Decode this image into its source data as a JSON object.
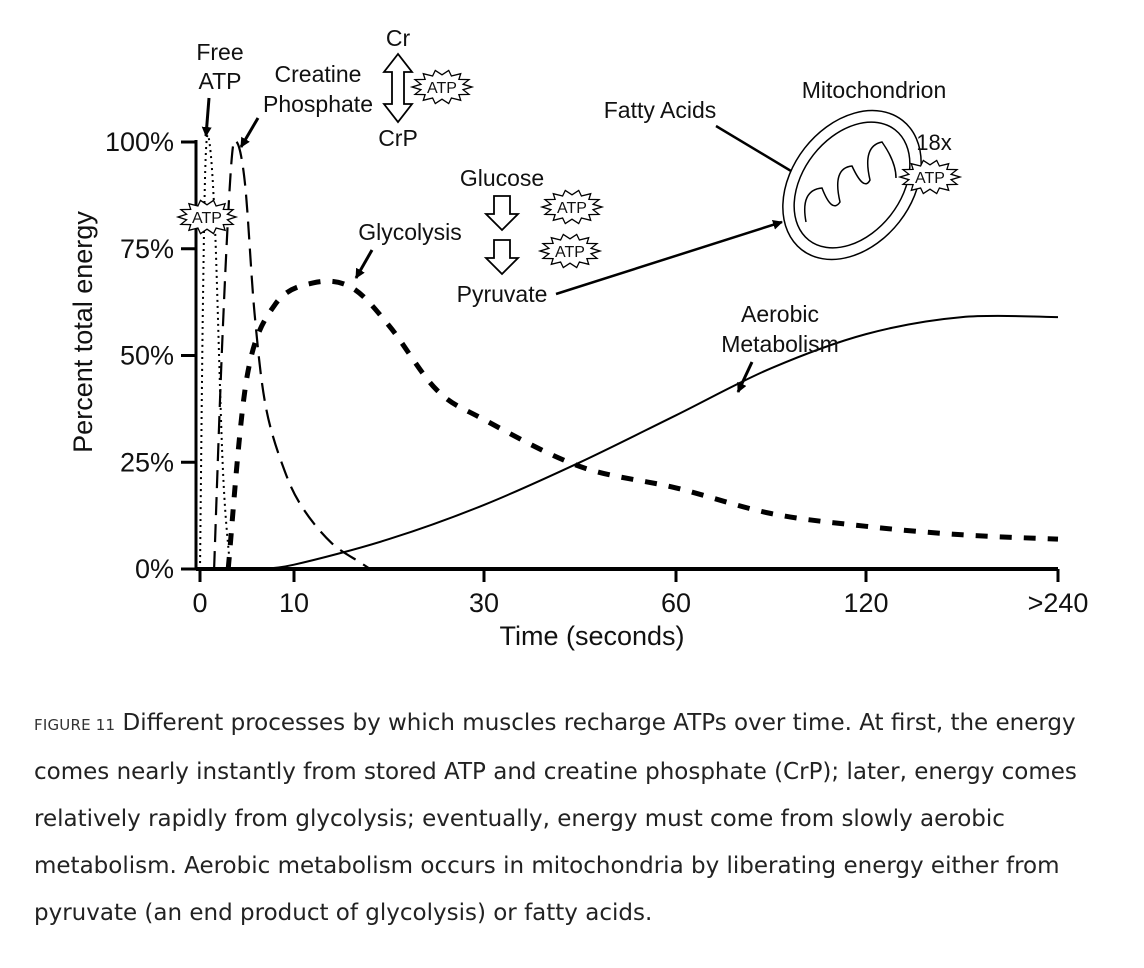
{
  "chart_data": {
    "type": "line",
    "ylabel": "Percent total energy",
    "xlabel": "Time (seconds)",
    "x_tick_labels": [
      "0",
      "10",
      "30",
      "60",
      "120",
      ">240"
    ],
    "y_tick_labels": [
      "0%",
      "25%",
      "50%",
      "75%",
      "100%"
    ],
    "ylim": [
      0,
      100
    ],
    "x_scale": "nonlinear (ordinal time points)",
    "grid": false,
    "series": [
      {
        "name": "Free ATP",
        "style": "dotted",
        "points": [
          [
            0,
            0
          ],
          [
            0.3,
            60
          ],
          [
            0.6,
            96
          ],
          [
            1,
            100
          ],
          [
            1.6,
            80
          ],
          [
            2.4,
            25
          ],
          [
            3.1,
            3
          ],
          [
            3.3,
            0
          ]
        ]
      },
      {
        "name": "Creatine Phosphate",
        "style": "dashed",
        "points": [
          [
            1.5,
            0
          ],
          [
            2.4,
            55
          ],
          [
            3.3,
            94
          ],
          [
            3.9,
            100
          ],
          [
            4.8,
            90
          ],
          [
            5.8,
            60
          ],
          [
            7,
            38
          ],
          [
            9,
            23
          ],
          [
            11,
            14
          ],
          [
            14,
            6
          ],
          [
            17,
            1.5
          ],
          [
            18,
            0
          ]
        ]
      },
      {
        "name": "Glycolysis",
        "style": "heavy dashed",
        "points": [
          [
            3,
            0
          ],
          [
            5,
            45
          ],
          [
            8,
            62
          ],
          [
            12,
            67
          ],
          [
            16,
            66
          ],
          [
            20,
            57
          ],
          [
            25,
            42
          ],
          [
            30,
            35
          ],
          [
            45,
            24
          ],
          [
            60,
            19
          ],
          [
            90,
            13
          ],
          [
            120,
            10
          ],
          [
            180,
            8
          ],
          [
            240,
            7
          ]
        ]
      },
      {
        "name": "Aerobic Metabolism",
        "style": "solid",
        "points": [
          [
            6,
            0
          ],
          [
            10,
            1
          ],
          [
            20,
            7
          ],
          [
            30,
            15
          ],
          [
            45,
            25
          ],
          [
            60,
            36
          ],
          [
            90,
            47
          ],
          [
            120,
            55
          ],
          [
            180,
            59
          ],
          [
            240,
            59
          ]
        ]
      }
    ],
    "annotations": {
      "free_atp": "Free\nATP",
      "creatine_phosphate": "Creatine\nPhosphate",
      "cr": "Cr",
      "crp": "CrP",
      "atp": "ATP",
      "glucose": "Glucose",
      "glycolysis": "Glycolysis",
      "pyruvate": "Pyruvate",
      "fatty_acids": "Fatty Acids",
      "mitochondrion": "Mitochondrion",
      "multiplier": "18x",
      "aerobic": "Aerobic\nMetabolism"
    }
  },
  "caption": {
    "label": "FIGURE 11",
    "text": "Different processes by which muscles recharge ATPs over time. At first, the energy comes nearly instantly from stored ATP and creatine phosphate (CrP); later, energy comes relatively rapidly from glycolysis; eventually, energy must come from slowly aerobic metabolism. Aerobic metabolism occurs in mitochondria by liberating energy either from pyruvate (an end product of glycolysis) or fatty acids."
  }
}
